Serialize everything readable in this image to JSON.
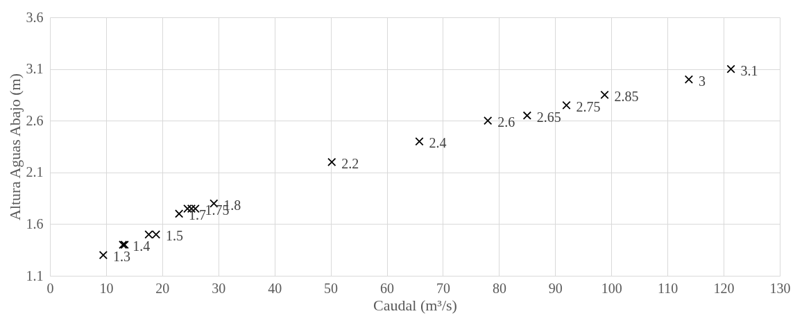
{
  "chart_data": {
    "type": "scatter",
    "xlabel": "Caudal (m³/s)",
    "ylabel": "Altura Aguas Abajo (m)",
    "x": [
      9.5,
      13.0,
      13.3,
      17.6,
      18.9,
      23.0,
      24.5,
      25.2,
      25.9,
      29.2,
      50.2,
      65.8,
      78.0,
      85.0,
      92.0,
      98.8,
      113.8,
      121.3
    ],
    "series": [
      {
        "color": "#000000",
        "values": [
          1.3,
          1.4,
          1.4,
          1.5,
          1.5,
          1.7,
          1.75,
          1.75,
          1.75,
          1.8,
          2.2,
          2.4,
          2.6,
          2.65,
          2.75,
          2.85,
          3,
          3.1
        ],
        "value_labels": [
          "1.3",
          "1.4",
          null,
          null,
          "1.5",
          "1.7",
          null,
          null,
          "1.75",
          "1.8",
          "2.2",
          "2.4",
          "2.6",
          "2.65",
          "2.75",
          "2.85",
          "3",
          "3.1"
        ]
      }
    ],
    "xlim": [
      0,
      130
    ],
    "xticks": [
      0,
      10,
      20,
      30,
      40,
      50,
      60,
      70,
      80,
      90,
      100,
      110,
      120,
      130
    ],
    "ylim": [
      1.1,
      3.6
    ],
    "yticks": [
      1.1,
      1.6,
      2.1,
      2.6,
      3.1,
      3.6
    ],
    "grid": true,
    "marker": "cross",
    "legend": false
  }
}
